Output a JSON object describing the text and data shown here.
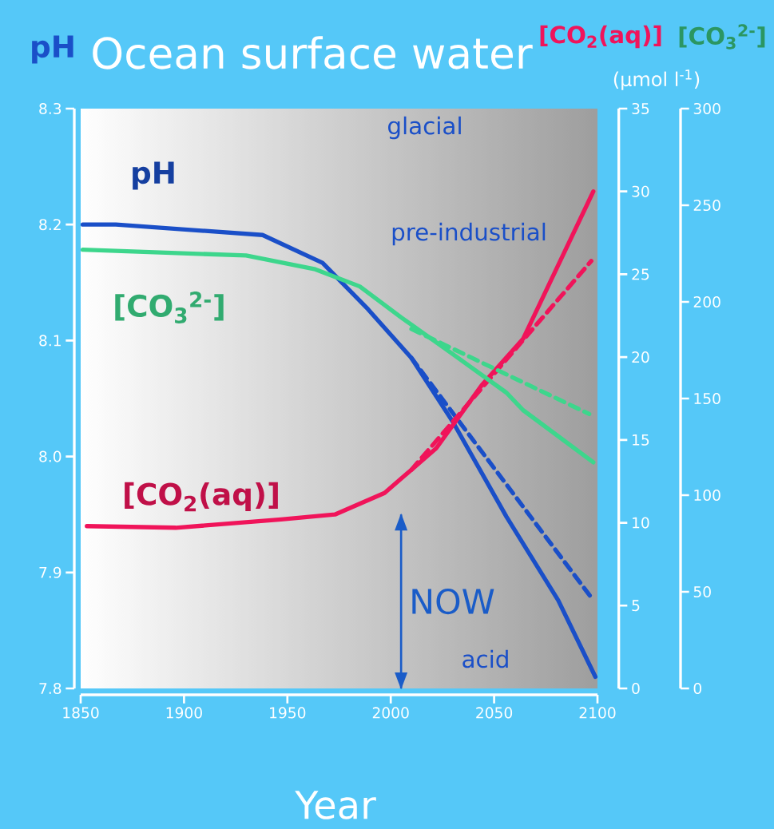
{
  "chart_data": {
    "type": "line",
    "title": "Ocean surface water",
    "xlabel": "Year",
    "ylabel": "pH",
    "y2label": "[CO$_{2}$(aq)]",
    "y3label": "[CO$_{3}$$^{2-}$]",
    "xlim": [
      1850,
      2100
    ],
    "xticks": [
      1850,
      1900,
      1950,
      2000,
      2050,
      2100
    ],
    "ylim": [
      7.8,
      8.3
    ],
    "yticks": [
      7.8,
      7.9,
      {
        "value": 8.0,
        "label": "8.0"
      },
      8.1,
      8.2,
      8.3
    ],
    "y2lim": [
      0,
      35
    ],
    "y2ticks": [
      0,
      5,
      10,
      15,
      20,
      25,
      30,
      35
    ],
    "y3lim": [
      0,
      300
    ],
    "y3ticks": [
      0,
      50,
      100,
      150,
      200,
      250,
      300
    ],
    "series": [
      {
        "name": "pH",
        "color": "#1a4fc8",
        "axis": "y",
        "line_style": "solid",
        "x": [
          1851,
          1867,
          1938,
          1967,
          1989,
          2010,
          2030,
          2056,
          2081,
          2099
        ],
        "values": [
          8.2,
          8.2,
          8.191,
          8.167,
          8.127,
          8.085,
          8.03,
          7.948,
          7.876,
          7.81
        ]
      },
      {
        "color": "#1a4fc8",
        "axis": "y",
        "line_style": "dashed",
        "x": [
          2010,
          2098
        ],
        "values": [
          8.085,
          7.876
        ]
      },
      {
        "name": "[CO$_{3}$$^{2-}$]",
        "color": "#3dd68c",
        "axis": "y3",
        "line_style": "solid",
        "x": [
          1851,
          1930,
          1963,
          1985,
          2005,
          2030,
          2056,
          2064,
          2098
        ],
        "values": [
          227,
          224,
          217,
          208,
          192,
          173,
          153,
          144,
          117
        ]
      },
      {
        "color": "#3dd68c",
        "axis": "y3",
        "line_style": "dashed",
        "x": [
          2010,
          2096
        ],
        "values": [
          186,
          142
        ]
      },
      {
        "name": "[CO$_{2}$(aq)]",
        "color": "#f0145a",
        "axis": "y2",
        "line_style": "solid",
        "x": [
          1853,
          1896,
          1947,
          1973,
          1997,
          2010,
          2022,
          2044,
          2064,
          2098
        ],
        "values": [
          9.8,
          9.7,
          10.2,
          10.5,
          11.8,
          13.2,
          14.5,
          18.3,
          21.1,
          30.0
        ]
      },
      {
        "color": "#f0145a",
        "axis": "y2",
        "line_style": "dashed",
        "x": [
          2010,
          2097
        ],
        "values": [
          13.2,
          25.8
        ]
      }
    ],
    "ref_lines": [
      {
        "axis": "x",
        "value": 2005,
        "label": "NOW",
        "color": "#1a5cc8"
      }
    ],
    "annotations": [
      "glacial",
      "pre-industrial",
      "acid",
      "(µmol l$^{-1}$)"
    ],
    "grid": false,
    "marker": "none"
  }
}
